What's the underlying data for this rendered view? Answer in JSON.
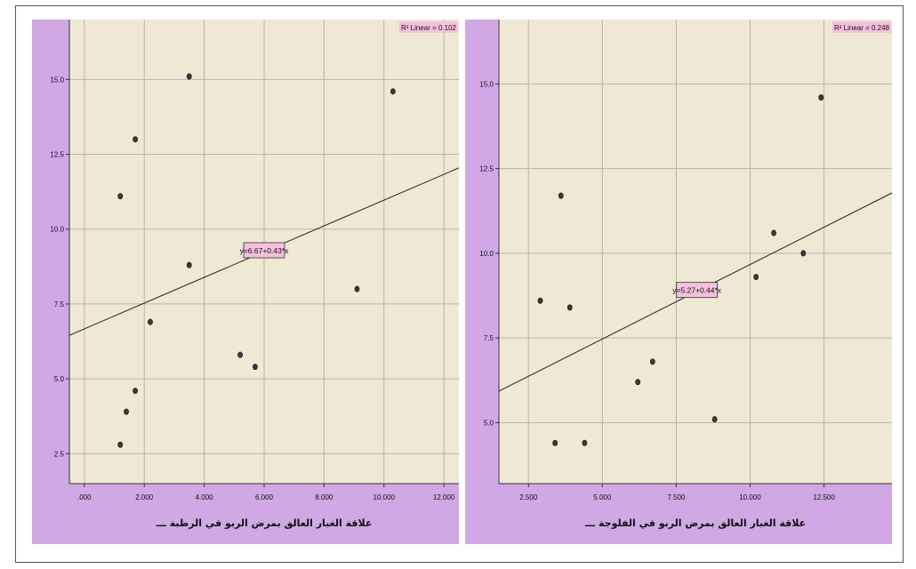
{
  "chart_data": [
    {
      "type": "scatter",
      "title": "",
      "xlabel": "علاقة الغبار العالق بمرض الربو في الرطبة ـــ",
      "ylabel": "",
      "xlim": [
        -0.5,
        12.5
      ],
      "ylim": [
        1.5,
        17.0
      ],
      "x_ticks": [
        ".000",
        "2.000",
        "4.000",
        "6.000",
        "8.000",
        "10.000",
        "12.000"
      ],
      "x_tick_values": [
        0,
        2,
        4,
        6,
        8,
        10,
        12
      ],
      "y_ticks": [
        "2.5",
        "5.0",
        "7.5",
        "10.0",
        "12.5",
        "15.0"
      ],
      "y_tick_values": [
        2.5,
        5.0,
        7.5,
        10.0,
        12.5,
        15.0
      ],
      "grid": true,
      "points": [
        {
          "x": 1.2,
          "y": 11.1
        },
        {
          "x": 1.7,
          "y": 13.0
        },
        {
          "x": 3.5,
          "y": 15.1
        },
        {
          "x": 3.5,
          "y": 8.8
        },
        {
          "x": 10.3,
          "y": 14.6
        },
        {
          "x": 2.2,
          "y": 6.9
        },
        {
          "x": 1.7,
          "y": 4.6
        },
        {
          "x": 1.4,
          "y": 3.9
        },
        {
          "x": 1.2,
          "y": 2.8
        },
        {
          "x": 5.2,
          "y": 5.8
        },
        {
          "x": 5.7,
          "y": 5.4
        },
        {
          "x": 9.1,
          "y": 8.0
        }
      ],
      "fit": {
        "intercept": 6.67,
        "slope": 0.43,
        "equation": "y=6.67+0.43*x",
        "r2_label": "R² Linear = 0.102"
      }
    },
    {
      "type": "scatter",
      "title": "",
      "xlabel": "علاقة الغبار العالق بمرض الربو في الفلوجة ـــ",
      "ylabel": "",
      "xlim": [
        1.5,
        14.8
      ],
      "ylim": [
        3.2,
        16.9
      ],
      "x_ticks": [
        "2.500",
        "5.000",
        "7.500",
        "10.000",
        "12.500"
      ],
      "x_tick_values": [
        2.5,
        5.0,
        7.5,
        10.0,
        12.5
      ],
      "y_ticks": [
        "5.0",
        "7.5",
        "10.0",
        "12.5",
        "15.0"
      ],
      "y_tick_values": [
        5.0,
        7.5,
        10.0,
        12.5,
        15.0
      ],
      "grid": true,
      "points": [
        {
          "x": 2.9,
          "y": 8.6
        },
        {
          "x": 3.6,
          "y": 11.7
        },
        {
          "x": 3.9,
          "y": 8.4
        },
        {
          "x": 3.4,
          "y": 4.4
        },
        {
          "x": 4.4,
          "y": 4.4
        },
        {
          "x": 6.2,
          "y": 6.2
        },
        {
          "x": 6.7,
          "y": 6.8
        },
        {
          "x": 8.8,
          "y": 5.1
        },
        {
          "x": 10.2,
          "y": 9.3
        },
        {
          "x": 10.8,
          "y": 10.6
        },
        {
          "x": 11.8,
          "y": 10.0
        },
        {
          "x": 12.4,
          "y": 14.6
        }
      ],
      "fit": {
        "intercept": 5.27,
        "slope": 0.44,
        "equation": "y=5.27+0.44*x",
        "r2_label": "R² Linear = 0.248"
      }
    }
  ],
  "colors": {
    "panel_bg": "#cfa8e4",
    "plot_bg": "#efe8d5",
    "grid": "#b8b4a6",
    "label_box": "#f4c2dc",
    "point_fill": "#3a3a3a",
    "fit_line": "#222222"
  }
}
